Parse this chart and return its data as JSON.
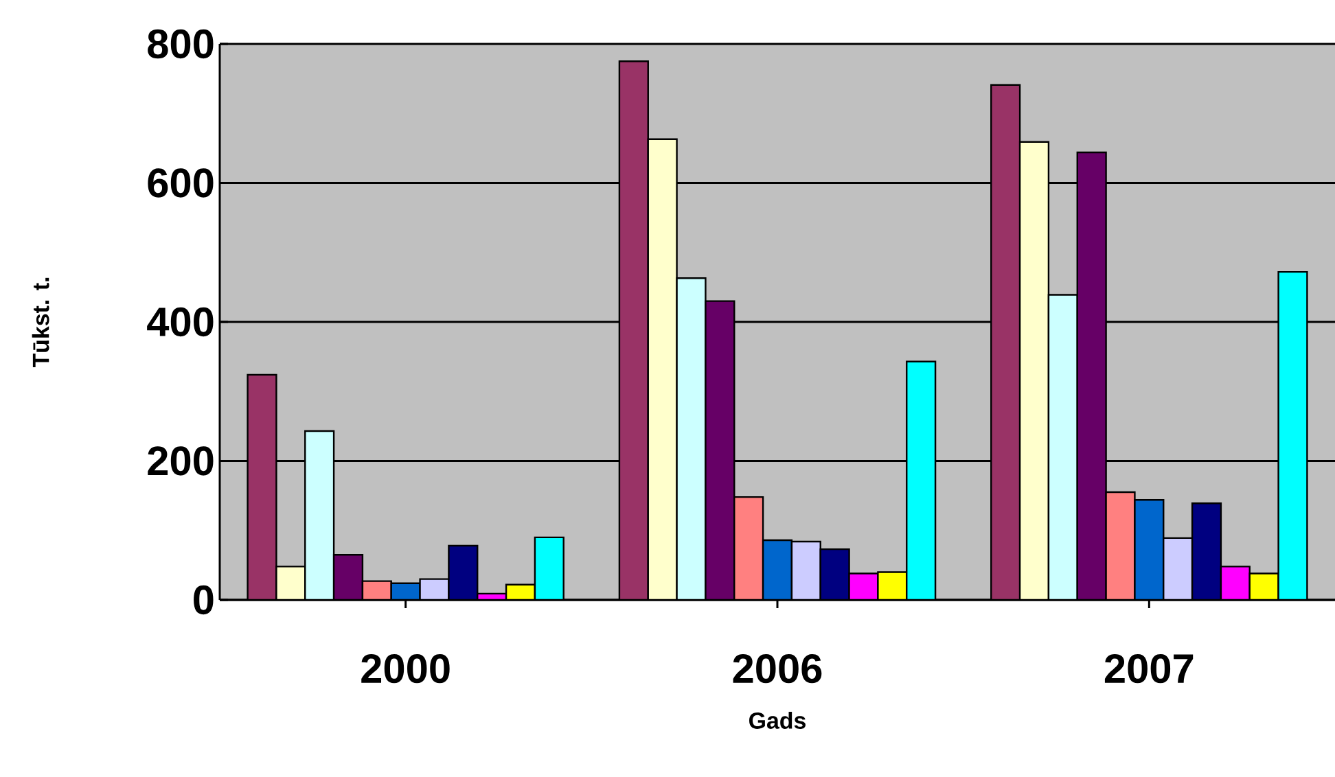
{
  "chart_data": {
    "type": "bar",
    "xlabel": "Gads",
    "ylabel": "Tūkst. t.",
    "categories": [
      "2000",
      "2006",
      "2007"
    ],
    "series": [
      {
        "color": "#993366",
        "values": [
          324,
          775,
          741
        ]
      },
      {
        "color": "#ffffcc",
        "values": [
          48,
          663,
          659
        ]
      },
      {
        "color": "#ccffff",
        "values": [
          243,
          463,
          439
        ]
      },
      {
        "color": "#660066",
        "values": [
          65,
          430,
          644
        ]
      },
      {
        "color": "#ff8080",
        "values": [
          27,
          148,
          155
        ]
      },
      {
        "color": "#0066cc",
        "values": [
          24,
          86,
          144
        ]
      },
      {
        "color": "#ccccff",
        "values": [
          30,
          84,
          89
        ]
      },
      {
        "color": "#000080",
        "values": [
          78,
          73,
          139
        ]
      },
      {
        "color": "#ff00ff",
        "values": [
          9,
          38,
          48
        ]
      },
      {
        "color": "#ffff00",
        "values": [
          22,
          40,
          38
        ]
      },
      {
        "color": "#00ffff",
        "values": [
          90,
          343,
          472
        ]
      }
    ],
    "ylim": [
      0,
      800
    ],
    "yticks": [
      0,
      200,
      400,
      600,
      800
    ],
    "grid": "y"
  }
}
